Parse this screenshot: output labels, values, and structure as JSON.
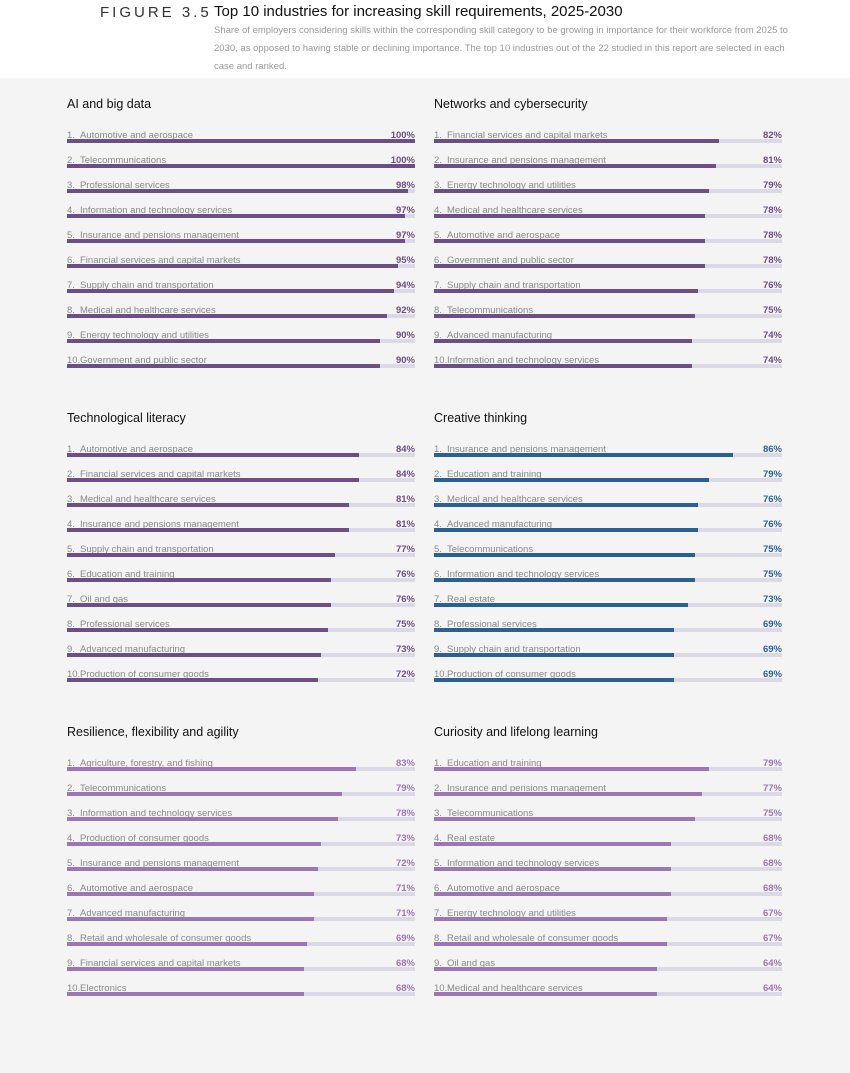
{
  "header": {
    "figure": "FIGURE 3.5",
    "title": "Top 10 industries for increasing skill requirements, 2025-2030",
    "subtitle": "Share of employers considering skills within the corresponding skill category to be growing in importance for their workforce from 2025 to 2030, as opposed to having stable or declining importance. The top 10 industries out of the 22 studied in this report are selected in each case and ranked."
  },
  "chart_data": [
    {
      "type": "bar",
      "title": "AI and big data",
      "color": "#6b4f86",
      "xlim": [
        0,
        100
      ],
      "categories": [
        "Automotive and aerospace",
        "Telecommunications",
        "Professional services",
        "Information and technology services",
        "Insurance and pensions management",
        "Financial services and capital markets",
        "Supply chain and transportation",
        "Medical and healthcare services",
        "Energy technology and utilities",
        "Government and public sector"
      ],
      "values": [
        100,
        100,
        98,
        97,
        97,
        95,
        94,
        92,
        90,
        90
      ]
    },
    {
      "type": "bar",
      "title": "Networks and cybersecurity",
      "color": "#6b4f86",
      "xlim": [
        0,
        100
      ],
      "categories": [
        "Financial services and capital markets",
        "Insurance and pensions management",
        "Energy technology and utilities",
        "Medical and healthcare services",
        "Automotive and aerospace",
        "Government and public sector",
        "Supply chain and transportation",
        "Telecommunications",
        "Advanced manufacturing",
        "Information and technology services"
      ],
      "values": [
        82,
        81,
        79,
        78,
        78,
        78,
        76,
        75,
        74,
        74
      ]
    },
    {
      "type": "bar",
      "title": "Technological literacy",
      "color": "#6b4f86",
      "xlim": [
        0,
        100
      ],
      "categories": [
        "Automotive and aerospace",
        "Financial services and capital markets",
        "Medical and healthcare services",
        "Insurance and pensions management",
        "Supply chain and transportation",
        "Education and training",
        "Oil and gas",
        "Professional services",
        "Advanced manufacturing",
        "Production of consumer goods"
      ],
      "values": [
        84,
        84,
        81,
        81,
        77,
        76,
        76,
        75,
        73,
        72
      ]
    },
    {
      "type": "bar",
      "title": "Creative thinking",
      "color": "#2a6096",
      "xlim": [
        0,
        100
      ],
      "categories": [
        "Insurance and pensions management",
        "Education and training",
        "Medical and healthcare services",
        "Advanced manufacturing",
        "Telecommunications",
        "Information and technology services",
        "Real estate",
        "Professional services",
        "Supply chain and transportation",
        "Production of consumer goods"
      ],
      "values": [
        86,
        79,
        76,
        76,
        75,
        75,
        73,
        69,
        69,
        69
      ]
    },
    {
      "type": "bar",
      "title": "Resilience, flexibility and agility",
      "color": "#9b77b5",
      "xlim": [
        0,
        100
      ],
      "categories": [
        "Agriculture, forestry, and fishing",
        "Telecommunications",
        "Information and technology services",
        "Production of consumer goods",
        "Insurance and pensions management",
        "Automotive and aerospace",
        "Advanced manufacturing",
        "Retail and wholesale of consumer goods",
        "Financial services and capital markets",
        "Electronics"
      ],
      "values": [
        83,
        79,
        78,
        73,
        72,
        71,
        71,
        69,
        68,
        68
      ]
    },
    {
      "type": "bar",
      "title": "Curiosity and lifelong learning",
      "color": "#9b77b5",
      "xlim": [
        0,
        100
      ],
      "categories": [
        "Education and training",
        "Insurance and pensions management",
        "Telecommunications",
        "Real estate",
        "Information and technology services",
        "Automotive and aerospace",
        "Energy technology and utilities",
        "Retail and wholesale of consumer goods",
        "Oil and gas",
        "Medical and healthcare services"
      ],
      "values": [
        79,
        77,
        75,
        68,
        68,
        68,
        67,
        67,
        64,
        64
      ]
    }
  ]
}
